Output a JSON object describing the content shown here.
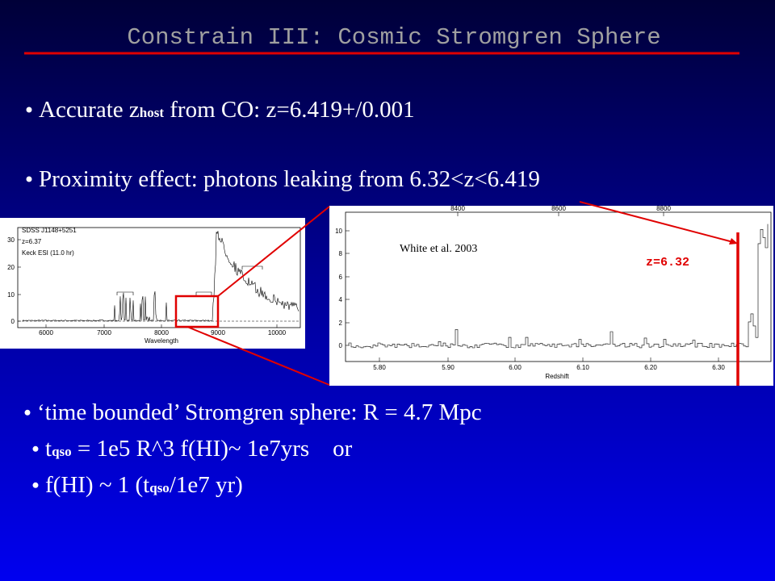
{
  "title": "Constrain III: Cosmic Stromgren Sphere",
  "bullets_top": [
    [
      "Accurate z",
      "host",
      " from CO: z=6.419+/0.001"
    ],
    [
      "Proximity effect: photons leaking from 6.32<z<6.419"
    ]
  ],
  "bullets_bottom": [
    [
      "‘time bounded’ Stromgren sphere: R = 4.7 Mpc"
    ],
    [
      "t",
      "qso",
      " = 1e5 R^3 f(HI)~ 1e7yrs    or"
    ],
    [
      "f(HI) ~ 1 (t",
      "qso",
      "/1e7 yr)"
    ]
  ],
  "spectrum_plot": {
    "labels": [
      "SDSS J1148+5251",
      "z=6.37",
      "Keck ESI (11.0 hr)"
    ],
    "yticks": [
      "0",
      "10",
      "20",
      "30"
    ],
    "xticks": [
      "6000",
      "7000",
      "8000",
      "9000",
      "10000"
    ],
    "xlabel": "Wavelength"
  },
  "zoom_plot": {
    "top_ticks": [
      "8400",
      "8600",
      "8800"
    ],
    "yticks": [
      "0",
      "2",
      "4",
      "6",
      "8",
      "10"
    ],
    "xticks": [
      "5.80",
      "5.90",
      "6.00",
      "6.10",
      "6.20",
      "6.30"
    ],
    "xlabel": "Redshift",
    "citation": "White et al. 2003",
    "marker": "z=6.32"
  }
}
